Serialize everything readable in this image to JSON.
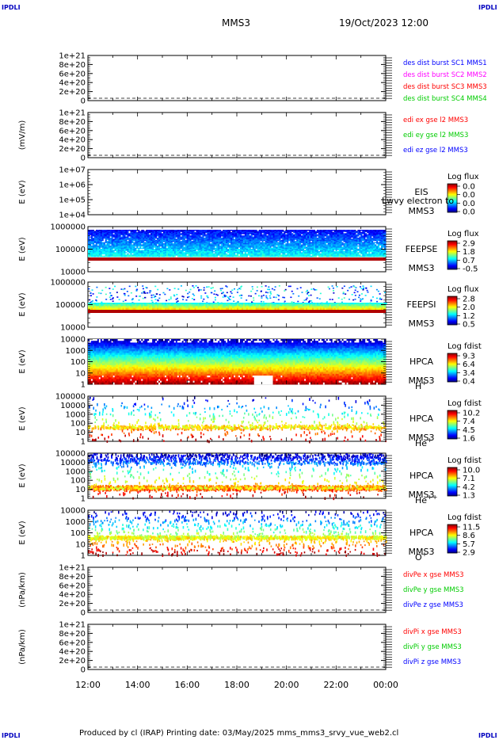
{
  "corners": {
    "tl": "IPDLI",
    "tr": "IPDLI",
    "bl": "IPDLI",
    "br": "IPDLI"
  },
  "header": {
    "spacecraft": "MMS3",
    "datetime": "19/Oct/2023 12:00"
  },
  "footer": {
    "text": "Produced by cl (IRAP)   Printing date: 03/May/2025   mms_mms3_srvy_vue_web2.cl"
  },
  "colors": {
    "red": "#ff0000",
    "green": "#00cc00",
    "blue": "#0000ff",
    "magenta": "#ff00ff",
    "panel_bg": "#ffffff",
    "floor_red": "#b00000"
  },
  "chart_data": {
    "type": "heatmap",
    "x": {
      "ticks": [
        "12:00",
        "14:00",
        "16:00",
        "18:00",
        "20:00",
        "22:00",
        "00:00"
      ]
    },
    "panels": [
      {
        "kind": "line",
        "ylabel": "",
        "ticks": [
          "1e+21",
          "8e+20",
          "6e+20",
          "4e+20",
          "2e+20",
          "0"
        ],
        "ylim": [
          0,
          1.1e+21
        ],
        "legend": [
          {
            "text": "des dist burst SC1 MMS1",
            "color": "#0000ff"
          },
          {
            "text": "des dist burst SC2 MMS2",
            "color": "#ff00ff"
          },
          {
            "text": "des dist burst SC3 MMS3",
            "color": "#ff0000"
          },
          {
            "text": "des dist burst SC4 MMS4",
            "color": "#00cc00"
          }
        ]
      },
      {
        "kind": "line",
        "ylabel": "(mV/m)",
        "ticks": [
          "1e+21",
          "8e+20",
          "6e+20",
          "4e+20",
          "2e+20",
          "0"
        ],
        "ylim": [
          0,
          1.1e+21
        ],
        "legend": [
          {
            "text": "edi ex gse l2 MMS3",
            "color": "#ff0000"
          },
          {
            "text": "edi ey gse l2 MMS3",
            "color": "#00cc00"
          },
          {
            "text": "edi ez gse l2 MMS3",
            "color": "#0000ff"
          }
        ]
      },
      {
        "kind": "spec",
        "ylabel": "E (eV)",
        "ticks": [
          "1e+07",
          "1e+06",
          "1e+05",
          "1e+04"
        ],
        "labels": [
          "EIS",
          "MMS3"
        ],
        "overlay": "Lwvy electron to",
        "cbar_title": "Log flux",
        "cbar_ticks": [
          "0.0",
          "0.0",
          "0.0",
          "0.0"
        ],
        "pattern": "empty"
      },
      {
        "kind": "spec",
        "ylabel": "E (eV)",
        "ticks": [
          "1000000",
          "100000",
          "10000"
        ],
        "labels": [
          "FEEPSE",
          "MMS3"
        ],
        "cbar_title": "Log flux",
        "cbar_ticks": [
          "2.9",
          "1.8",
          "0.7",
          "-0.5"
        ],
        "pattern": "feepse"
      },
      {
        "kind": "spec",
        "ylabel": "E (eV)",
        "ticks": [
          "1000000",
          "100000",
          "10000"
        ],
        "labels": [
          "FEEPSI",
          "MMS3"
        ],
        "cbar_title": "Log flux",
        "cbar_ticks": [
          "2.8",
          "2.0",
          "1.2",
          "0.5"
        ],
        "pattern": "feepsi"
      },
      {
        "kind": "spec",
        "ylabel": "E (eV)",
        "ticks": [
          "10000",
          "1000",
          "100",
          "10",
          "1"
        ],
        "labels": [
          "HPCA",
          "MMS3",
          "H+"
        ],
        "cbar_title": "Log fdist",
        "cbar_ticks": [
          "9.3",
          "6.4",
          "3.4",
          "0.4"
        ],
        "pattern": "hplus"
      },
      {
        "kind": "spec",
        "ylabel": "E (eV)",
        "ticks": [
          "100000",
          "10000",
          "1000",
          "100",
          "10",
          "1"
        ],
        "labels": [
          "HPCA",
          "MMS3",
          "He+"
        ],
        "cbar_title": "Log fdist",
        "cbar_ticks": [
          "10.2",
          "7.4",
          "4.5",
          "1.6"
        ],
        "pattern": "heplus"
      },
      {
        "kind": "spec",
        "ylabel": "E (eV)",
        "ticks": [
          "100000",
          "10000",
          "1000",
          "100",
          "10",
          "1"
        ],
        "labels": [
          "HPCA",
          "MMS3",
          "He++"
        ],
        "cbar_title": "Log fdist",
        "cbar_ticks": [
          "10.0",
          "7.1",
          "4.2",
          "1.3"
        ],
        "pattern": "hepp"
      },
      {
        "kind": "spec",
        "ylabel": "E (eV)",
        "ticks": [
          "10000",
          "1000",
          "100",
          "10",
          "1"
        ],
        "labels": [
          "HPCA",
          "MMS3",
          "O+"
        ],
        "cbar_title": "Log fdist",
        "cbar_ticks": [
          "11.5",
          "8.6",
          "5.7",
          "2.9"
        ],
        "pattern": "oplus"
      },
      {
        "kind": "line",
        "ylabel": "(nPa/km)",
        "ticks": [
          "1e+21",
          "8e+20",
          "6e+20",
          "4e+20",
          "2e+20",
          "0"
        ],
        "ylim": [
          0,
          1.1e+21
        ],
        "legend": [
          {
            "text": "divPe x gse MMS3",
            "color": "#ff0000"
          },
          {
            "text": "divPe y gse MMS3",
            "color": "#00cc00"
          },
          {
            "text": "divPe z gse MMS3",
            "color": "#0000ff"
          }
        ]
      },
      {
        "kind": "line",
        "ylabel": "(nPa/km)",
        "ticks": [
          "1e+21",
          "8e+20",
          "6e+20",
          "4e+20",
          "2e+20",
          "0"
        ],
        "ylim": [
          0,
          1.1e+21
        ],
        "legend": [
          {
            "text": "divPi x gse MMS3",
            "color": "#ff0000"
          },
          {
            "text": "divPi y gse MMS3",
            "color": "#00cc00"
          },
          {
            "text": "divPi z gse MMS3",
            "color": "#0000ff"
          }
        ]
      }
    ]
  }
}
